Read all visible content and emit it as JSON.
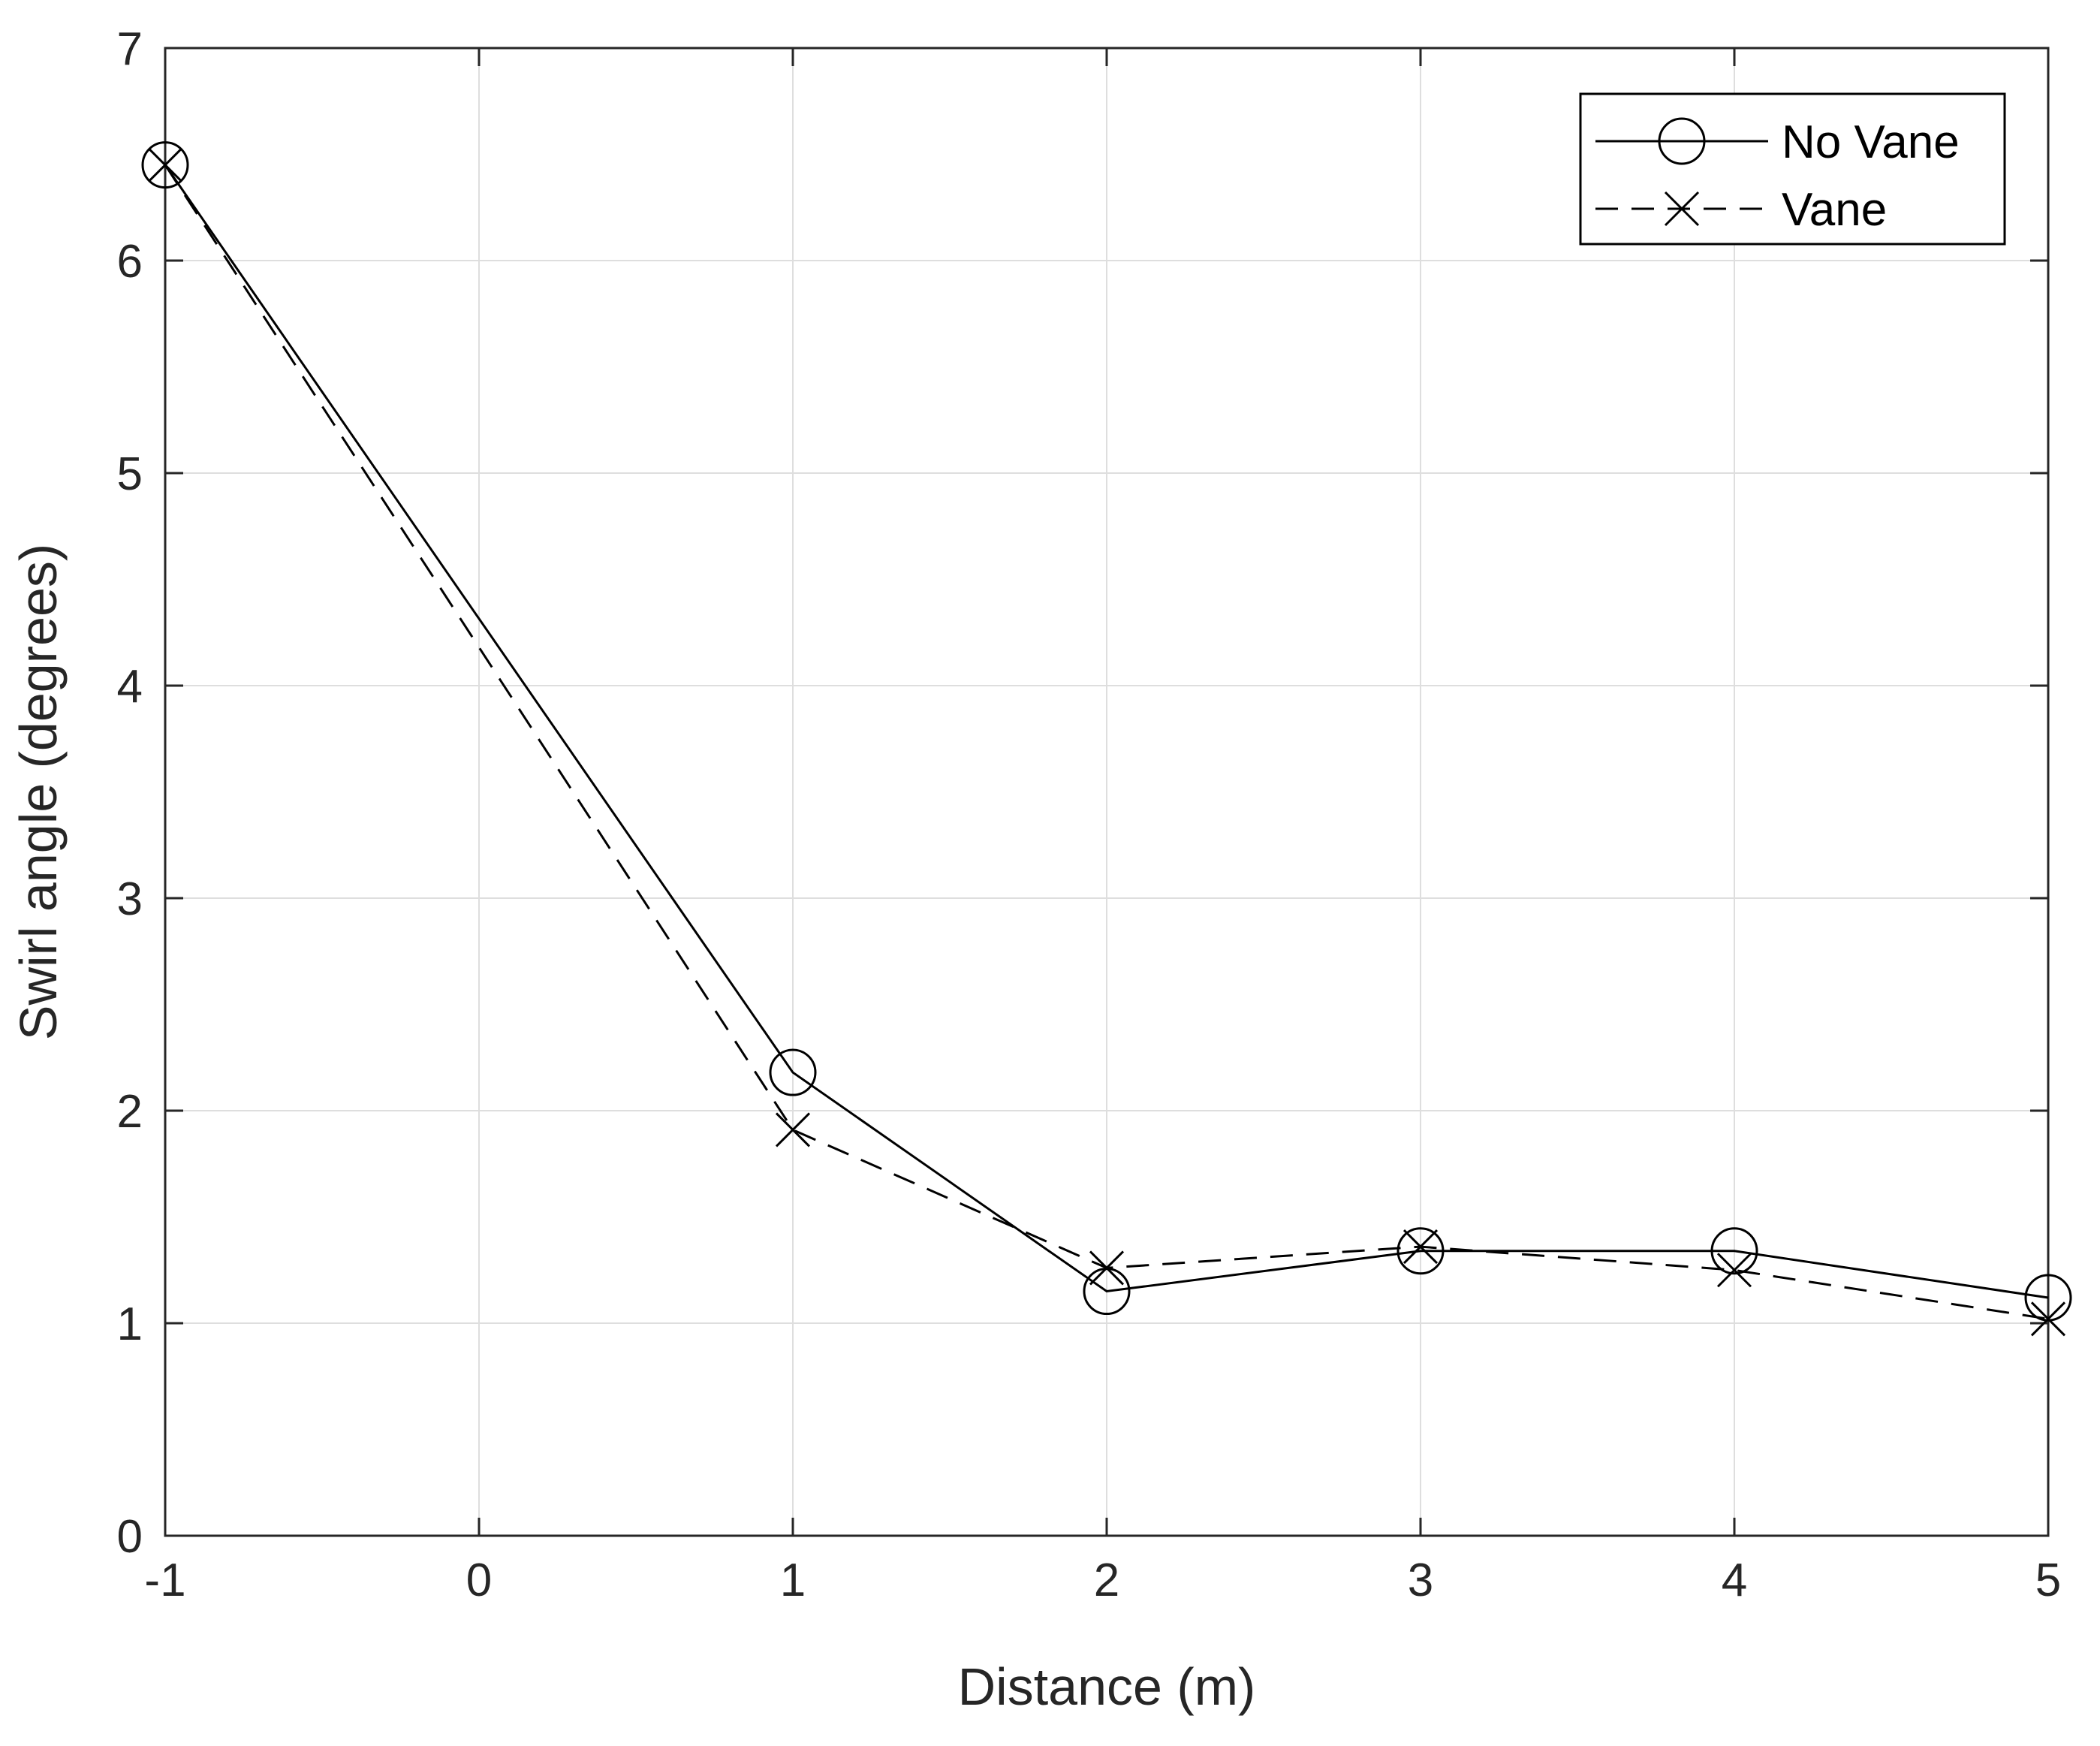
{
  "chart_data": {
    "type": "line",
    "xlabel": "Distance (m)",
    "ylabel": "Swirl angle (degrees)",
    "xlim": [
      -1,
      5
    ],
    "ylim": [
      0,
      7
    ],
    "xticks": [
      -1,
      0,
      1,
      2,
      3,
      4,
      5
    ],
    "yticks": [
      0,
      1,
      2,
      3,
      4,
      5,
      6,
      7
    ],
    "xtick_labels": [
      "-1",
      "0",
      "1",
      "2",
      "3",
      "4",
      "5"
    ],
    "ytick_labels": [
      "0",
      "1",
      "2",
      "3",
      "4",
      "5",
      "6",
      "7"
    ],
    "grid": true,
    "legend_position": "top-right",
    "series": [
      {
        "name": "No Vane",
        "line_style": "solid",
        "marker": "circle",
        "color": "#000000",
        "x": [
          -1,
          1,
          2,
          3,
          4,
          5
        ],
        "y": [
          6.45,
          2.18,
          1.15,
          1.34,
          1.34,
          1.12
        ]
      },
      {
        "name": "Vane",
        "line_style": "dashed",
        "marker": "x",
        "color": "#000000",
        "x": [
          -1,
          1,
          2,
          3,
          4,
          5
        ],
        "y": [
          6.45,
          1.91,
          1.26,
          1.36,
          1.25,
          1.02
        ]
      }
    ]
  }
}
